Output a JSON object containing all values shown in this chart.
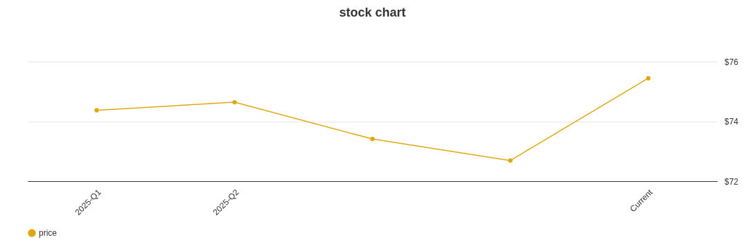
{
  "chart_data": {
    "type": "line",
    "title": "stock chart",
    "categories": [
      "2025-Q1",
      "2025-Q2",
      null,
      null,
      "Current"
    ],
    "series": [
      {
        "name": "price",
        "color": "#e0a80f",
        "values": [
          74.37,
          74.64,
          73.41,
          72.69,
          75.44
        ]
      }
    ],
    "ylim": [
      72,
      76
    ],
    "yticks": [
      {
        "value": 72,
        "label": "$72"
      },
      {
        "value": 74,
        "label": "$74"
      },
      {
        "value": 76,
        "label": "$76"
      }
    ],
    "grid": "y",
    "legend": "bottom",
    "marker": "circle",
    "line_style": "solid"
  }
}
